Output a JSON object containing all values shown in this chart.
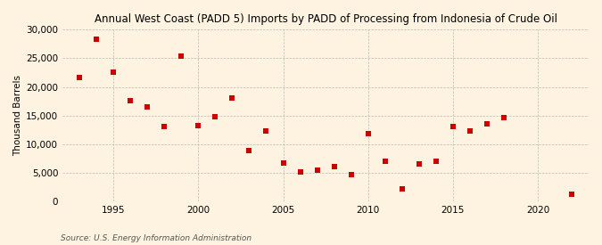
{
  "title": "Annual West Coast (PADD 5) Imports by PADD of Processing from Indonesia of Crude Oil",
  "ylabel": "Thousand Barrels",
  "source": "Source: U.S. Energy Information Administration",
  "background_color": "#fdf3e0",
  "plot_bg_color": "#fdf3e0",
  "marker_color": "#cc0000",
  "years": [
    1993,
    1994,
    1995,
    1996,
    1997,
    1998,
    1999,
    2000,
    2001,
    2002,
    2003,
    2004,
    2005,
    2006,
    2007,
    2008,
    2009,
    2010,
    2011,
    2012,
    2013,
    2014,
    2015,
    2016,
    2017,
    2018,
    2022
  ],
  "values": [
    21700,
    28300,
    22500,
    17600,
    16500,
    13000,
    25400,
    13200,
    14800,
    18100,
    8800,
    12300,
    6700,
    5200,
    5500,
    6000,
    4700,
    11900,
    7000,
    2100,
    6500,
    7000,
    13000,
    12300,
    13500,
    14700,
    1300
  ],
  "xlim": [
    1992,
    2023
  ],
  "ylim": [
    0,
    30000
  ],
  "yticks": [
    0,
    5000,
    10000,
    15000,
    20000,
    25000,
    30000
  ],
  "xticks": [
    1995,
    2000,
    2005,
    2010,
    2015,
    2020
  ]
}
